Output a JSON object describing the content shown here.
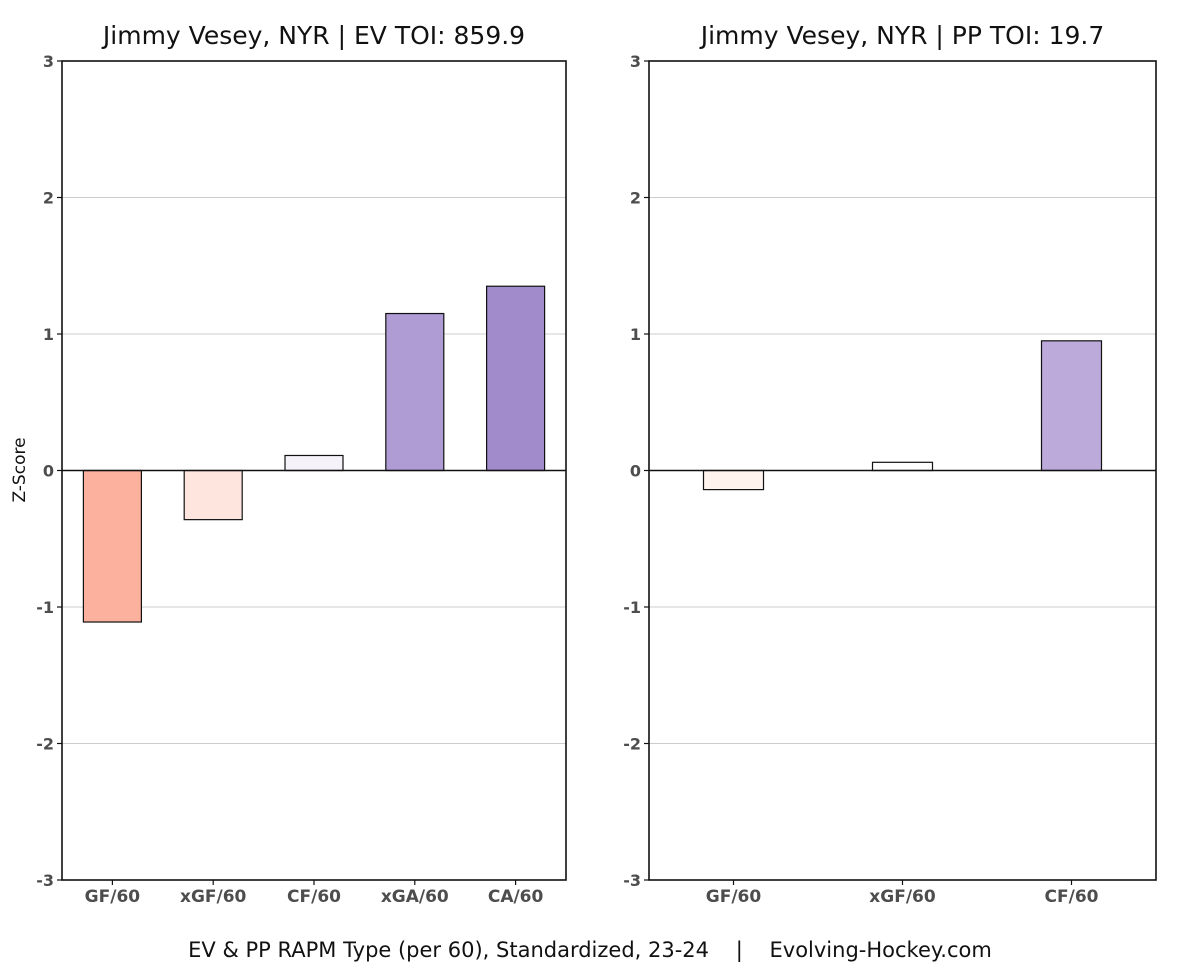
{
  "chart_data": [
    {
      "type": "bar",
      "title": "Jimmy Vesey, NYR  |  EV TOI: 859.9",
      "ylabel": "Z-Score",
      "ylim": [
        -3,
        3
      ],
      "yticks": [
        "3",
        "2",
        "1",
        "0",
        "-1",
        "-2",
        "-3"
      ],
      "grid": true,
      "categories": [
        "GF/60",
        "xGF/60",
        "CF/60",
        "xGA/60",
        "CA/60"
      ],
      "values": [
        -1.11,
        -0.36,
        0.11,
        1.15,
        1.35
      ],
      "colors": [
        "#fbb19d",
        "#fee5dd",
        "#f5f2fa",
        "#b09cd5",
        "#a28bca"
      ]
    },
    {
      "type": "bar",
      "title": "Jimmy Vesey, NYR  |  PP TOI: 19.7",
      "ylabel": "",
      "ylim": [
        -3,
        3
      ],
      "yticks": [
        "3",
        "2",
        "1",
        "0",
        "-1",
        "-2",
        "-3"
      ],
      "grid": true,
      "categories": [
        "GF/60",
        "xGF/60",
        "CF/60"
      ],
      "values": [
        -0.14,
        0.06,
        0.95
      ],
      "colors": [
        "#fff3ee",
        "#ffffff",
        "#bcaadb"
      ]
    }
  ],
  "caption": "EV & PP RAPM Type (per 60), Standardized, 23-24    |    Evolving-Hockey.com"
}
